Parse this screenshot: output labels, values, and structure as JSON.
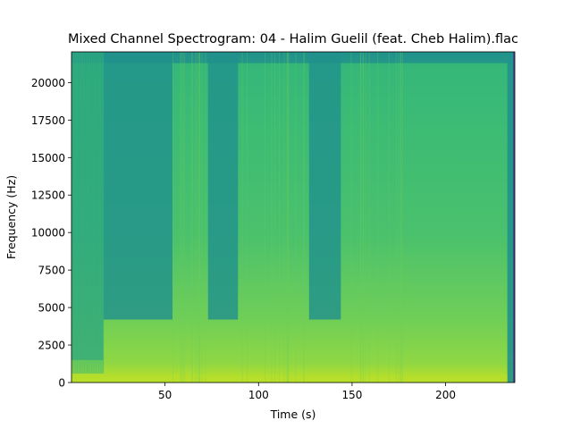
{
  "chart_data": {
    "type": "heatmap",
    "title": "Mixed Channel Spectrogram: 04 - Halim Guelil (feat. Cheb Halim).flac",
    "xlabel": "Time (s)",
    "ylabel": "Frequency (Hz)",
    "xlim": [
      0,
      237
    ],
    "ylim": [
      0,
      22050
    ],
    "x_ticks": [
      50,
      100,
      150,
      200
    ],
    "x_tick_labels": [
      "50",
      "100",
      "150",
      "200"
    ],
    "y_ticks": [
      0,
      2500,
      5000,
      7500,
      10000,
      12500,
      15000,
      17500,
      20000
    ],
    "y_tick_labels": [
      "0",
      "2500",
      "5000",
      "7500",
      "10000",
      "12500",
      "15000",
      "17500",
      "20000"
    ],
    "colormap": "viridis",
    "colors": {
      "dark_teal": "#21918c",
      "mid_green": "#35b779",
      "bright_green": "#6ece58",
      "yellow_green": "#b5de2b",
      "edge_blue": "#3b528b"
    },
    "segments": [
      {
        "start": 0,
        "end": 17,
        "texture": "dense-vertical-stripes",
        "level": 0.45
      },
      {
        "start": 17,
        "end": 54,
        "texture": "dark-upper-band",
        "level": 0.5
      },
      {
        "start": 54,
        "end": 73,
        "texture": "bright",
        "level": 0.62
      },
      {
        "start": 73,
        "end": 89,
        "texture": "dark-upper-band",
        "level": 0.48
      },
      {
        "start": 89,
        "end": 127,
        "texture": "bright",
        "level": 0.62
      },
      {
        "start": 127,
        "end": 144,
        "texture": "dark-upper-band",
        "level": 0.48
      },
      {
        "start": 144,
        "end": 179,
        "texture": "bright",
        "level": 0.62
      },
      {
        "start": 179,
        "end": 233,
        "texture": "smooth",
        "level": 0.64
      },
      {
        "start": 233,
        "end": 237,
        "texture": "fade-out",
        "level": 0.3
      }
    ]
  }
}
